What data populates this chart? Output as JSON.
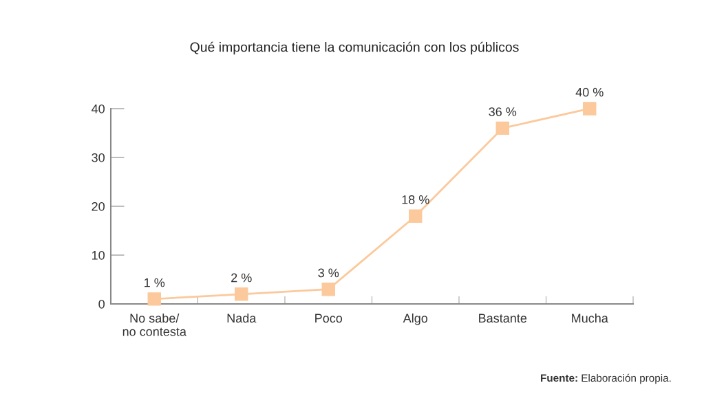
{
  "chart_data": {
    "type": "line",
    "title": "Qué importancia tiene la comunicación con los públicos",
    "categories": [
      "No sabe/\nno contesta",
      "Nada",
      "Poco",
      "Algo",
      "Bastante",
      "Mucha"
    ],
    "series": [
      {
        "color": "#fbc99b",
        "values": [
          1,
          2,
          3,
          18,
          36,
          40
        ],
        "value_labels": [
          "1 %",
          "2 %",
          "3 %",
          "18 %",
          "36 %",
          "40 %"
        ]
      }
    ],
    "ylim": [
      0,
      40
    ],
    "yticks": [
      0,
      10,
      20,
      30,
      40
    ],
    "marker": "square",
    "grid": false,
    "legend": false,
    "annotations": [
      "Fuente:",
      "Elaboración propia."
    ]
  }
}
